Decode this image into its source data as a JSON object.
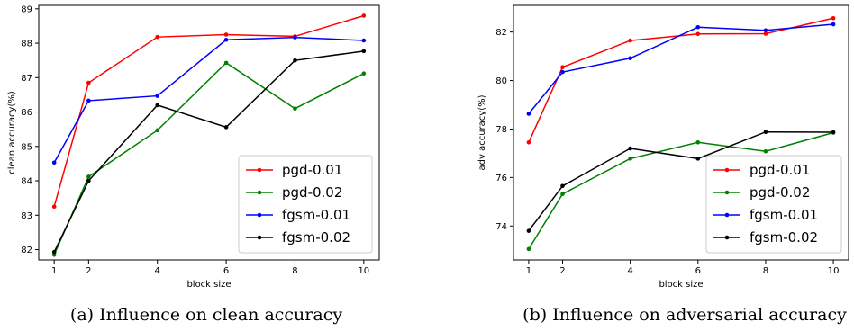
{
  "chart_data": [
    {
      "type": "line",
      "caption": "(a) Influence on clean accuracy",
      "xlabel": "block size",
      "ylabel": "clean accuracy(%)",
      "x": [
        1,
        2,
        4,
        6,
        8,
        10
      ],
      "xticks": [
        1,
        2,
        4,
        6,
        8,
        10
      ],
      "yticks": [
        82,
        83,
        84,
        85,
        86,
        87,
        88,
        89
      ],
      "xlim": [
        0.55,
        10.45
      ],
      "ylim": [
        81.7,
        89.1
      ],
      "legend_position": "lower-right",
      "grid": false,
      "series": [
        {
          "name": "pgd-0.01",
          "color": "#ff0000",
          "values": [
            83.25,
            86.85,
            88.18,
            88.25,
            88.2,
            88.8
          ]
        },
        {
          "name": "pgd-0.02",
          "color": "#008000",
          "values": [
            81.85,
            84.12,
            85.47,
            87.43,
            86.1,
            87.12
          ]
        },
        {
          "name": "fgsm-0.01",
          "color": "#0000ff",
          "values": [
            84.53,
            86.33,
            86.47,
            88.1,
            88.17,
            88.08
          ]
        },
        {
          "name": "fgsm-0.02",
          "color": "#000000",
          "values": [
            81.93,
            84.0,
            86.2,
            85.56,
            87.5,
            87.77
          ]
        }
      ]
    },
    {
      "type": "line",
      "caption": "(b) Influence on adversarial accuracy",
      "xlabel": "block size",
      "ylabel": "adv accuracy(%)",
      "x": [
        1,
        2,
        4,
        6,
        8,
        10
      ],
      "xticks": [
        1,
        2,
        4,
        6,
        8,
        10
      ],
      "yticks": [
        74,
        76,
        78,
        80,
        82
      ],
      "xlim": [
        0.55,
        10.45
      ],
      "ylim": [
        72.6,
        83.1
      ],
      "legend_position": "lower-right",
      "grid": false,
      "series": [
        {
          "name": "pgd-0.01",
          "color": "#ff0000",
          "values": [
            77.45,
            80.55,
            81.65,
            81.92,
            81.93,
            82.57
          ]
        },
        {
          "name": "pgd-0.02",
          "color": "#008000",
          "values": [
            73.05,
            75.32,
            76.78,
            77.45,
            77.08,
            77.85
          ]
        },
        {
          "name": "fgsm-0.01",
          "color": "#0000ff",
          "values": [
            78.63,
            80.35,
            80.92,
            82.2,
            82.07,
            82.32
          ]
        },
        {
          "name": "fgsm-0.02",
          "color": "#000000",
          "values": [
            73.8,
            75.65,
            77.2,
            76.78,
            77.88,
            77.87
          ]
        }
      ]
    }
  ]
}
